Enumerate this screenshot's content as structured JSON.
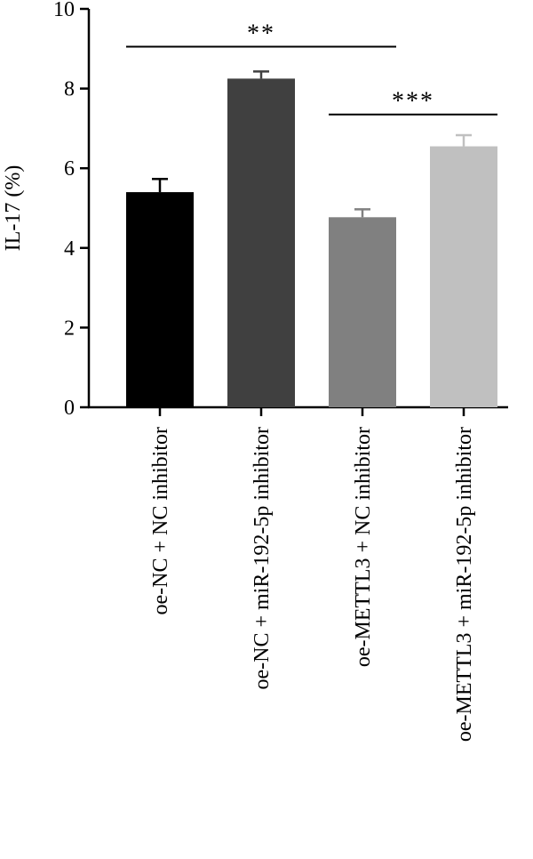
{
  "chart_data": {
    "type": "bar",
    "title": "",
    "xlabel": "",
    "ylabel": "IL-17 (%)",
    "ylim": [
      0,
      10
    ],
    "yticks": [
      0,
      2,
      4,
      6,
      8,
      10
    ],
    "ytick_labels": [
      "0",
      "2",
      "4",
      "6",
      "8",
      "10"
    ],
    "grid": false,
    "categories": [
      "oe-NC + NC inhibitor",
      "oe-NC + miR-192-5p inhibitor",
      "oe-METTL3 + NC inhibitor",
      "oe-METTL3 + miR-192-5p inhibitor"
    ],
    "values": [
      5.4,
      8.25,
      4.77,
      6.55
    ],
    "errors": [
      0.33,
      0.18,
      0.2,
      0.28
    ],
    "bar_colors": [
      "#000000",
      "#404040",
      "#808080",
      "#c0c0c0"
    ],
    "significance": [
      {
        "from": 0,
        "to": 2,
        "label": "**",
        "level": 9.05
      },
      {
        "from": 2,
        "to": 3,
        "label": "***",
        "level": 7.35
      }
    ]
  }
}
